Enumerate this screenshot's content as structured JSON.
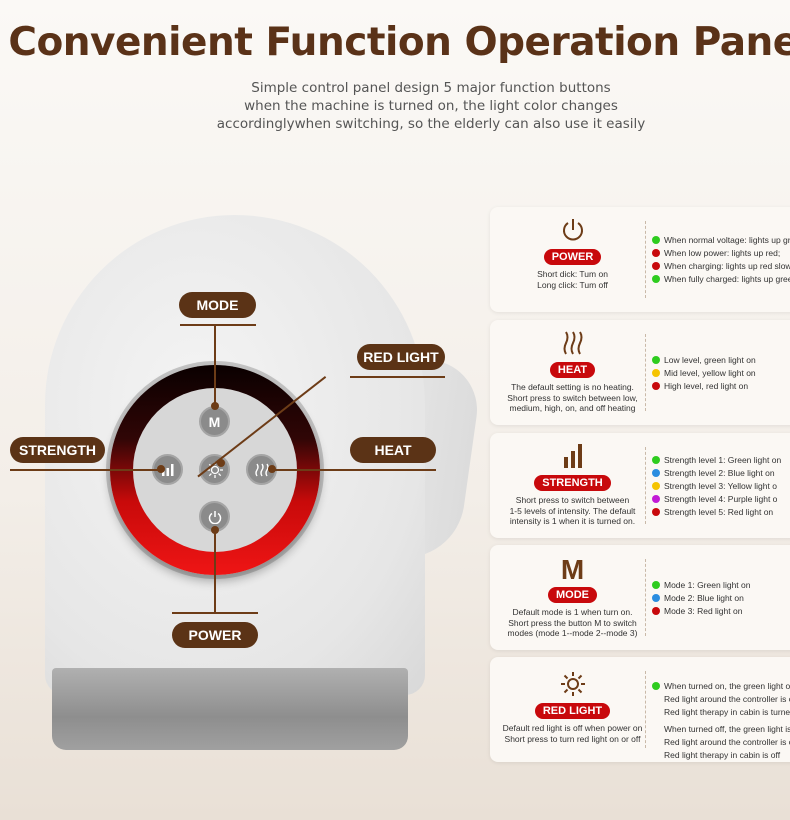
{
  "title": "Convenient Function Operation Panel",
  "subtitle": [
    "Simple control panel design  5 major function buttons",
    "when the machine is turned on, the light color changes",
    "accordinglywhen switching, so the elderly can also use it easily"
  ],
  "labels": {
    "mode": "MODE",
    "red_light": "RED LIGHT",
    "strength": "STRENGTH",
    "heat": "HEAT",
    "power": "POWER"
  },
  "device_buttons": {
    "mode": "M"
  },
  "colors": {
    "brown": "#5b3316",
    "red": "#c8090c",
    "green": "#2ecc1f",
    "yellow": "#f5c400",
    "blue": "#2a8de0",
    "purple": "#c21ad6",
    "redlight": "#d0090c"
  },
  "panels": [
    {
      "icon": "power-icon",
      "badge": "POWER",
      "desc": [
        "Short dick: Tum on",
        "Long click: Tum off"
      ],
      "items": [
        {
          "color": "green",
          "text": "When normal voltage: lights up gr"
        },
        {
          "color": "red",
          "text": "When low power: lights up red;"
        },
        {
          "color": "red",
          "text": "When charging: lights up red slow"
        },
        {
          "color": "green",
          "text": "When fully charged: lights up gree"
        }
      ]
    },
    {
      "icon": "heat-icon",
      "badge": "HEAT",
      "desc": [
        "The default setting is no heating.",
        "Short press to switch between low,",
        "medium, high, on, and off heating"
      ],
      "items": [
        {
          "color": "green",
          "text": "Low level, green light on"
        },
        {
          "color": "yellow",
          "text": "Mid level, yellow light on"
        },
        {
          "color": "red",
          "text": "High level, red light on"
        }
      ]
    },
    {
      "icon": "strength-icon",
      "badge": "STRENGTH",
      "desc": [
        "Short press to switch between",
        "1-5 levels of intensity. The default",
        "intensity is 1 when it is turned on."
      ],
      "items": [
        {
          "color": "green",
          "text": "Strength level 1: Green light on"
        },
        {
          "color": "blue",
          "text": "Strength level 2: Blue light on"
        },
        {
          "color": "yellow",
          "text": "Strength level 3: Yellow light o"
        },
        {
          "color": "purple",
          "text": "Strength level 4: Purple light o"
        },
        {
          "color": "red",
          "text": "Strength level 5: Red light on"
        }
      ]
    },
    {
      "icon": "mode-icon",
      "icon_text": "M",
      "badge": "MODE",
      "desc": [
        "Default mode is 1 when turn on.",
        "Short press the button M to switch",
        "modes (mode 1--mode 2--mode 3)"
      ],
      "items": [
        {
          "color": "green",
          "text": "Mode 1: Green light on"
        },
        {
          "color": "blue",
          "text": "Mode 2: Blue light on"
        },
        {
          "color": "red",
          "text": "Mode 3: Red light on"
        }
      ]
    },
    {
      "icon": "sun-icon",
      "badge": "RED LIGHT",
      "desc": [
        "Default red light is off when power on",
        "Short press to turn red light on or off"
      ],
      "items": [
        {
          "color": "green",
          "text": "When turned on, the green light on"
        },
        {
          "color": "",
          "text": "Red light around the controller is o"
        },
        {
          "color": "",
          "text": "Red light therapy in cabin is turned"
        },
        {
          "color": "",
          "text": "When turned off, the green light is"
        },
        {
          "color": "",
          "text": "Red light around the controller is o"
        },
        {
          "color": "",
          "text": "Red light therapy in cabin is off"
        }
      ]
    }
  ]
}
